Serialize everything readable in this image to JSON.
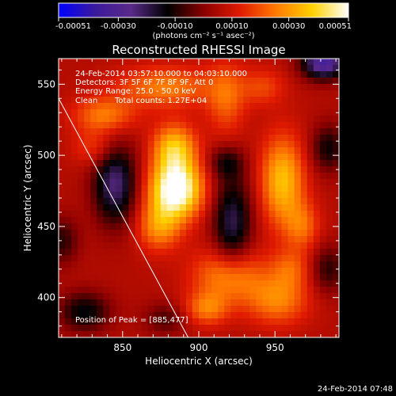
{
  "chart_data": {
    "type": "heatmap",
    "title": "Reconstructed RHESSI Image",
    "xlabel": "Heliocentric X (arcsec)",
    "ylabel": "Heliocentric Y (arcsec)",
    "xlim": [
      808,
      992
    ],
    "ylim": [
      372,
      568
    ],
    "x_ticks": [
      850,
      900,
      950
    ],
    "y_ticks": [
      400,
      450,
      500,
      550
    ],
    "colorbar": {
      "range": [
        -0.00051,
        0.00051
      ],
      "tick_values": [
        -0.00051,
        -0.0003,
        -0.0001,
        0.0001,
        0.0003,
        0.00051
      ],
      "tick_labels": [
        "-0.00051",
        "-0.00030",
        "-0.00010",
        "0.00010",
        "0.00030",
        "0.00051"
      ],
      "unit_label": "(photons cm⁻² s⁻¹ asec⁻²)",
      "colors": [
        "#0000ff",
        "#3a1a9c",
        "#5a2a8a",
        "#000000",
        "#8a0000",
        "#e01a00",
        "#ff7a00",
        "#ffd000",
        "#ffffff"
      ]
    },
    "annotations": [
      "24-Feb-2014 03:57:10.000 to 04:03:10.000",
      "Detectors: 3F 5F 6F 7F 8F 9F, Att 0",
      "Energy Range: 25.0 - 50.0 keV",
      "Clean",
      "Total counts: 1.27E+04"
    ],
    "peak_label": "Position of Peak = [885,477]",
    "peak": [
      885,
      477
    ],
    "limb_line": [
      [
        808,
        540
      ],
      [
        893,
        372
      ]
    ],
    "blobs": [
      {
        "x": 885,
        "y": 476,
        "sx": 12,
        "sy": 14,
        "amp": 0.00051
      },
      {
        "x": 884,
        "y": 505,
        "sx": 10,
        "sy": 12,
        "amp": 0.0003
      },
      {
        "x": 874,
        "y": 450,
        "sx": 10,
        "sy": 12,
        "amp": 0.00022
      },
      {
        "x": 955,
        "y": 482,
        "sx": 10,
        "sy": 22,
        "amp": 0.0003
      },
      {
        "x": 968,
        "y": 450,
        "sx": 8,
        "sy": 12,
        "amp": 0.00016
      },
      {
        "x": 838,
        "y": 528,
        "sx": 14,
        "sy": 9,
        "amp": 0.0002
      },
      {
        "x": 878,
        "y": 548,
        "sx": 22,
        "sy": 10,
        "amp": 0.0002
      },
      {
        "x": 918,
        "y": 540,
        "sx": 9,
        "sy": 18,
        "amp": 0.00016
      },
      {
        "x": 832,
        "y": 505,
        "sx": 10,
        "sy": 9,
        "amp": 0.00012
      },
      {
        "x": 942,
        "y": 548,
        "sx": 10,
        "sy": 9,
        "amp": 0.00012
      },
      {
        "x": 920,
        "y": 415,
        "sx": 16,
        "sy": 14,
        "amp": 0.00025
      },
      {
        "x": 905,
        "y": 392,
        "sx": 10,
        "sy": 8,
        "amp": 0.00018
      },
      {
        "x": 952,
        "y": 398,
        "sx": 14,
        "sy": 12,
        "amp": 0.0002
      },
      {
        "x": 960,
        "y": 420,
        "sx": 9,
        "sy": 10,
        "amp": 0.00014
      },
      {
        "x": 825,
        "y": 390,
        "sx": 12,
        "sy": 10,
        "amp": -0.0002
      },
      {
        "x": 845,
        "y": 480,
        "sx": 10,
        "sy": 20,
        "amp": -0.0003
      },
      {
        "x": 922,
        "y": 452,
        "sx": 9,
        "sy": 24,
        "amp": -0.00026
      },
      {
        "x": 982,
        "y": 565,
        "sx": 10,
        "sy": 8,
        "amp": -0.0004
      },
      {
        "x": 985,
        "y": 505,
        "sx": 8,
        "sy": 12,
        "amp": -0.00018
      },
      {
        "x": 918,
        "y": 495,
        "sx": 8,
        "sy": 8,
        "amp": -0.00015
      },
      {
        "x": 985,
        "y": 420,
        "sx": 8,
        "sy": 12,
        "amp": -0.00015
      },
      {
        "x": 810,
        "y": 440,
        "sx": 8,
        "sy": 12,
        "amp": -0.00015
      },
      {
        "x": 878,
        "y": 385,
        "sx": 10,
        "sy": 8,
        "amp": -0.00012
      }
    ],
    "baseline": 6e-05
  },
  "footer": {
    "timestamp": "24-Feb-2014 07:48"
  }
}
